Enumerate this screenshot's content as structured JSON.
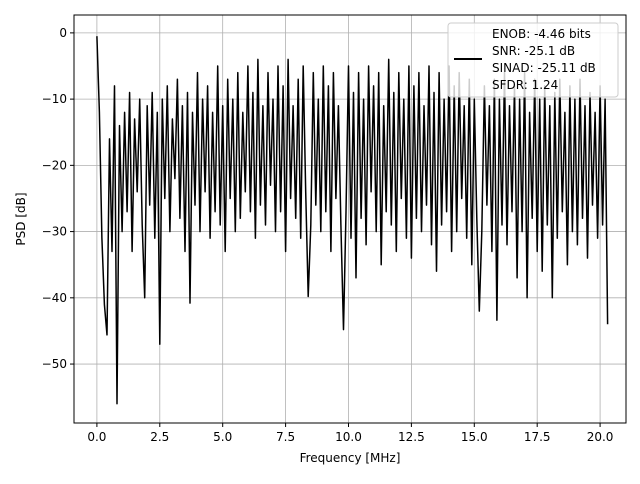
{
  "chart_data": {
    "type": "line",
    "title": "",
    "xlabel": "Frequency [MHz]",
    "ylabel": "PSD [dB]",
    "xlim": [
      -0.91,
      21.03
    ],
    "ylim": [
      -58.9,
      2.7
    ],
    "grid": true,
    "xticks": [
      0,
      2.5,
      5,
      7.5,
      10,
      12.5,
      15,
      17.5,
      20
    ],
    "xtick_labels": [
      "0.0",
      "2.5",
      "5.0",
      "7.5",
      "10.0",
      "12.5",
      "15.0",
      "17.5",
      "20.0"
    ],
    "yticks": [
      0,
      -10,
      -20,
      -30,
      -40,
      -50
    ],
    "ytick_labels": [
      "0",
      "−10",
      "−20",
      "−30",
      "−40",
      "−50"
    ],
    "legend_placement": "top-right",
    "legend": [
      "ENOB: -4.46 bits",
      "SNR: -25.1 dB",
      "SINAD: -25.11 dB",
      "SFDR: 1.24"
    ],
    "series": [
      {
        "name": "PSD",
        "color": "#000000",
        "x_start": 0,
        "x_step": 0.1,
        "values": [
          -0.5,
          -12,
          -31,
          -41,
          -45.6,
          -16,
          -33,
          -8,
          -56,
          -14,
          -30,
          -12,
          -27,
          -9,
          -33,
          -13,
          -24,
          -10,
          -29,
          -40,
          -11,
          -26,
          -9,
          -31,
          -12,
          -47,
          -10,
          -25,
          -8,
          -30,
          -13,
          -22,
          -7,
          -28,
          -11,
          -33,
          -9,
          -40.8,
          -12,
          -26,
          -6,
          -30,
          -10,
          -24,
          -8,
          -31,
          -12,
          -27,
          -5,
          -29,
          -11,
          -33,
          -7,
          -25,
          -10,
          -30,
          -6,
          -28,
          -12,
          -24,
          -5,
          -27,
          -9,
          -31,
          -4,
          -26,
          -11,
          -29,
          -6,
          -23,
          -10,
          -30,
          -5,
          -27,
          -8,
          -33,
          -4,
          -25,
          -11,
          -28,
          -7,
          -31,
          -5,
          -24,
          -39.8,
          -29,
          -6,
          -26,
          -10,
          -30,
          -5,
          -27,
          -8,
          -33,
          -6,
          -25,
          -11,
          -29,
          -44.8,
          -27,
          -5,
          -31,
          -9,
          -37,
          -6,
          -28,
          -10,
          -32,
          -5,
          -24,
          -8,
          -30,
          -6,
          -35,
          -11,
          -27,
          -4,
          -29,
          -9,
          -33,
          -6,
          -25,
          -10,
          -31,
          -5,
          -34,
          -8,
          -28,
          -6,
          -30,
          -11,
          -26,
          -5,
          -32,
          -9,
          -36,
          -6,
          -29,
          -10,
          -27,
          -5,
          -33,
          -8,
          -30,
          -6,
          -25,
          -11,
          -31,
          -7,
          -35,
          -10,
          -28,
          -42,
          -30,
          -8,
          -26,
          -11,
          -33,
          -7,
          -43.4,
          -10,
          -29,
          -6,
          -32,
          -11,
          -27,
          -8,
          -37,
          -10,
          -30,
          -6,
          -40,
          -12,
          -28,
          -7,
          -33,
          -10,
          -36,
          -8,
          -29,
          -11,
          -40,
          -9,
          -31,
          -7,
          -27,
          -12,
          -35,
          -8,
          -30,
          -10,
          -32,
          -7,
          -28,
          -11,
          -34,
          -9,
          -26,
          -12,
          -31,
          -8,
          -29,
          -10,
          -44
        ]
      }
    ]
  }
}
